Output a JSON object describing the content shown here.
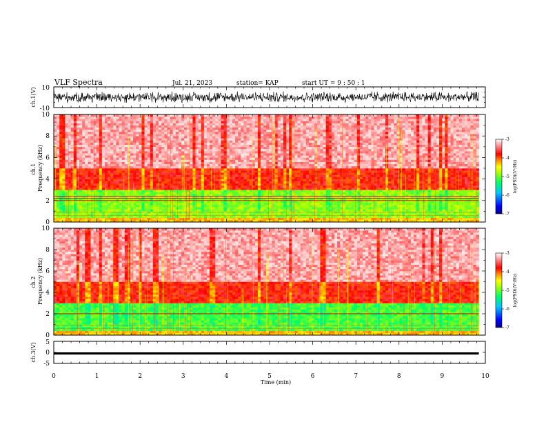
{
  "header": {
    "title": "VLF Spectra",
    "date": "Jul. 21, 2023",
    "station": "station= KAP",
    "start_time": "start UT =  9 : 50 : 1"
  },
  "colors": {
    "spectrogram_scale": [
      "#00008f",
      "#0000ff",
      "#00c8ff",
      "#00ff66",
      "#aaff00",
      "#ffff00",
      "#ff8800",
      "#ff0000",
      "#ff9999",
      "#ffffff"
    ],
    "waveform": "#000000"
  },
  "chart_data": [
    {
      "type": "line",
      "name": "ch1-waveform",
      "ylabel": "ch.1(V)",
      "ylim": [
        -10,
        10
      ],
      "yticks": [
        "10",
        "-10"
      ],
      "xlim": [
        0,
        10
      ],
      "y_range_observed": [
        -6,
        6
      ]
    },
    {
      "type": "heatmap",
      "name": "ch1-spectrogram",
      "ylabel": "ch.1\nFrequency (kHz)",
      "ylim": [
        0,
        10
      ],
      "yticks": [
        "0",
        "2",
        "4",
        "6",
        "8",
        "10"
      ],
      "xlim": [
        0,
        9.85
      ],
      "colorbar": {
        "label": "log(PSD)(V²/Hz)",
        "range": [
          -7,
          -3
        ],
        "ticks": [
          "-3",
          "-4",
          "-5",
          "-6",
          "-7"
        ]
      },
      "bands_log_psd": [
        {
          "freq_khz": [
            0,
            0.5
          ],
          "level": -4.3
        },
        {
          "freq_khz": [
            0.5,
            3.0
          ],
          "level": -4.9
        },
        {
          "freq_khz": [
            3.0,
            5.0
          ],
          "level": -3.8
        },
        {
          "freq_khz": [
            5.0,
            10.0
          ],
          "level": -3.3
        }
      ],
      "lines_khz": [
        2.0,
        2.2,
        2.4
      ]
    },
    {
      "type": "heatmap",
      "name": "ch2-spectrogram",
      "ylabel": "ch.2\nFrequency (kHz)",
      "ylim": [
        0,
        10
      ],
      "yticks": [
        "0",
        "2",
        "4",
        "6",
        "8",
        "10"
      ],
      "xlim": [
        0,
        9.85
      ],
      "colorbar": {
        "label": "log(PSD)(V²/Hz)",
        "range": [
          -7,
          -3
        ],
        "ticks": [
          "-3",
          "-4",
          "-5",
          "-6",
          "-7"
        ]
      },
      "bands_log_psd": [
        {
          "freq_khz": [
            0,
            0.5
          ],
          "level": -4.3
        },
        {
          "freq_khz": [
            0.5,
            3.0
          ],
          "level": -5.1
        },
        {
          "freq_khz": [
            3.0,
            5.0
          ],
          "level": -3.8
        },
        {
          "freq_khz": [
            5.0,
            10.0
          ],
          "level": -3.3
        }
      ],
      "lines_khz": [
        2.0
      ]
    },
    {
      "type": "line",
      "name": "ch3-waveform",
      "ylabel": "ch.3(V)",
      "ylim": [
        -5,
        5
      ],
      "yticks": [
        "5",
        "0",
        "-5"
      ],
      "xlabel": "Time (min)",
      "xlim": [
        0,
        10
      ],
      "xticks": [
        "0",
        "1",
        "2",
        "3",
        "4",
        "5",
        "6",
        "7",
        "8",
        "9",
        "10"
      ],
      "y_range_observed": [
        -1.0,
        0.0
      ]
    }
  ]
}
